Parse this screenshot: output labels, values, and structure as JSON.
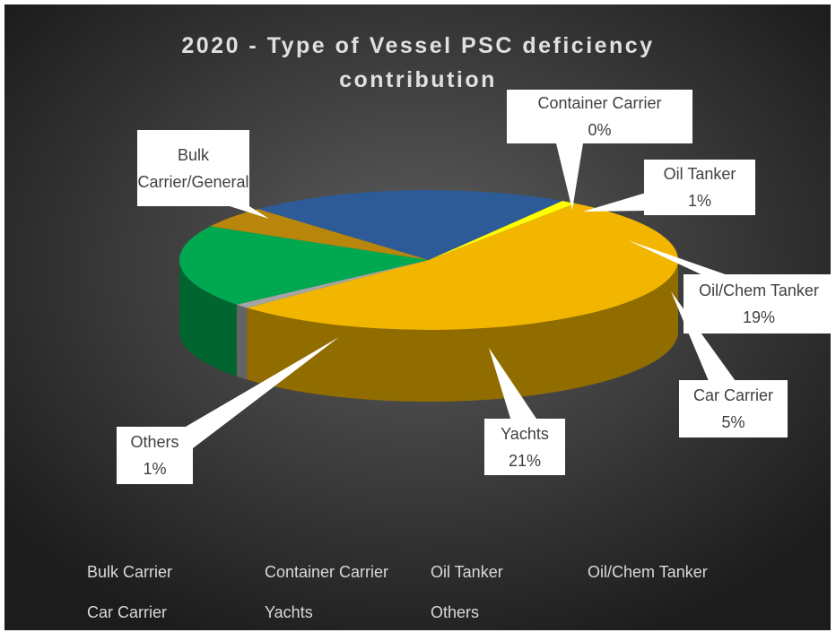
{
  "chart_data": {
    "type": "pie3d",
    "title": "2020 - Type of Vessel PSC deficiency contribution",
    "categories": [
      "Bulk Carrier",
      "Container Carrier",
      "Oil Tanker",
      "Oil/Chem Tanker",
      "Car Carrier",
      "Yachts",
      "Others"
    ],
    "label_names": [
      "Bulk Carrier/General",
      "Container Carrier",
      "Oil Tanker",
      "Oil/Chem Tanker",
      "Car Carrier",
      "Yachts",
      "Others"
    ],
    "values": [
      53,
      0,
      1,
      19,
      5,
      21,
      1
    ],
    "value_labels": [
      null,
      "0%",
      "1%",
      "19%",
      "5%",
      "21%",
      "1%"
    ],
    "colors": [
      "#f2b500",
      "#a5a5a5",
      "#a5a5a5",
      "#00a84f",
      "#b8860b",
      "#2d5b97",
      "#ffff00"
    ],
    "legend": "bottom"
  }
}
